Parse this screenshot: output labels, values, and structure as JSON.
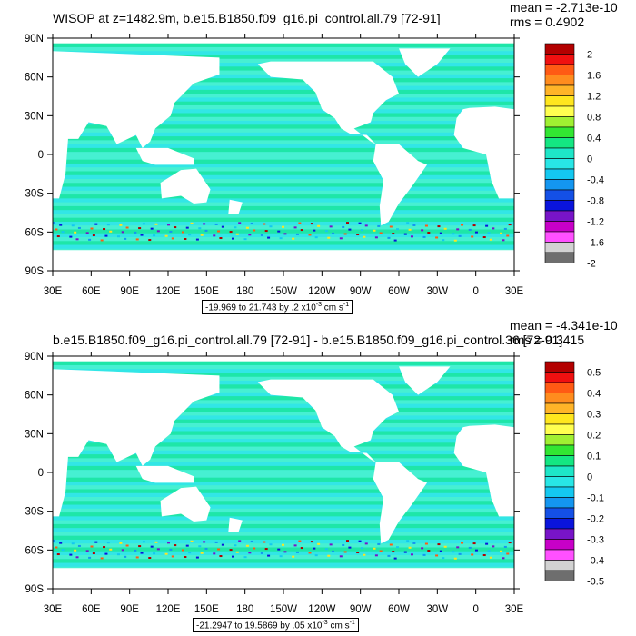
{
  "panels": [
    {
      "title": "WISOP at z=1482.9m, b.e15.B1850.f09_g16.pi_control.all.79 [72-91]",
      "mean": "mean = -2.713e-10",
      "rms": "rms = 0.4902",
      "range_text": "-19.969 to 21.743 by .2 x10",
      "range_exp": "-3",
      "range_unit": " cm s",
      "range_unit_exp": "-1",
      "colorbar_labels": [
        "2",
        "1.6",
        "1.2",
        "0.8",
        "0.4",
        "0",
        "-0.4",
        "-0.8",
        "-1.2",
        "-1.6",
        "-2"
      ]
    },
    {
      "title": "b.e15.B1850.f09_g16.pi_control.all.79 [72-91] - b.e15.B1850.f09_g16.pi_control.36 [72-91]",
      "mean": "mean = -4.341e-10",
      "rms": "rms = 0.3415",
      "range_text": "-21.2947 to 19.5869 by .05 x10",
      "range_exp": "-3",
      "range_unit": " cm s",
      "range_unit_exp": "-1",
      "colorbar_labels": [
        "0.5",
        "0.4",
        "0.3",
        "0.2",
        "0.1",
        "0",
        "-0.1",
        "-0.2",
        "-0.3",
        "-0.4",
        "-0.5"
      ]
    }
  ],
  "lat_labels": [
    "90N",
    "60N",
    "30N",
    "0",
    "30S",
    "60S",
    "90S"
  ],
  "lon_labels": [
    "30E",
    "60E",
    "90E",
    "120E",
    "150E",
    "180",
    "150W",
    "120W",
    "90W",
    "60W",
    "30W",
    "0",
    "30E"
  ],
  "colorbar_colors": [
    "#b30000",
    "#f01010",
    "#ff5a14",
    "#ff8c1e",
    "#ffb428",
    "#ffe61e",
    "#ffff50",
    "#a0f032",
    "#32e632",
    "#14e682",
    "#1ee6c8",
    "#28e6e6",
    "#14c8f0",
    "#1496f0",
    "#1450e6",
    "#0a14dc",
    "#7814c8",
    "#c800c8",
    "#ff50ff",
    "#d2d2d2",
    "#6e6e6e"
  ],
  "ocean_colors": {
    "main": "#1ee6a8",
    "light": "#46f0d2",
    "cyan": "#32e6e6",
    "green": "#3ce650"
  }
}
